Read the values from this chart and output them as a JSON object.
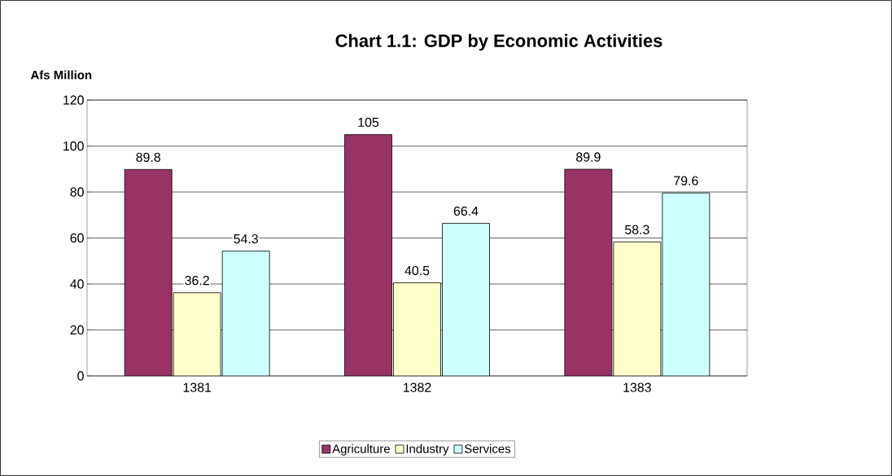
{
  "chart_data": {
    "type": "bar",
    "title": "Chart 1.1: GDP by Economic Activities",
    "ylabel": "Afs Million",
    "categories": [
      "1381",
      "1382",
      "1383"
    ],
    "series": [
      {
        "name": "Agriculture",
        "color": "#993366",
        "values": [
          89.8,
          105,
          89.9
        ]
      },
      {
        "name": "Industry",
        "color": "#ffffcc",
        "values": [
          36.2,
          40.5,
          58.3
        ]
      },
      {
        "name": "Services",
        "color": "#ccffff",
        "values": [
          54.3,
          66.4,
          79.6
        ]
      }
    ],
    "ylim": [
      0,
      120
    ],
    "yticks": [
      0,
      20,
      40,
      60,
      80,
      100,
      120
    ],
    "grid": "y",
    "legend": "bottom",
    "data_labels": true
  }
}
